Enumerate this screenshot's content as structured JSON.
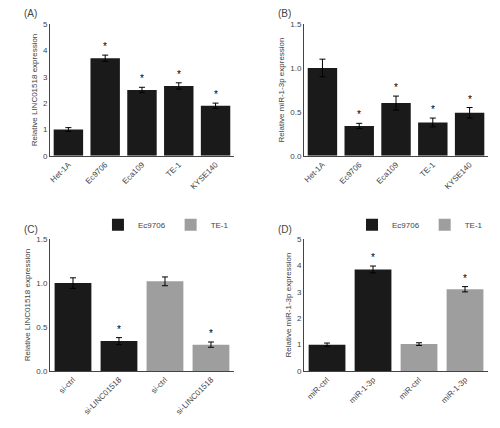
{
  "chart_data": [
    {
      "type": "bar",
      "title": "(A)",
      "categories": [
        "Het-1A",
        "Ec9706",
        "Eca109",
        "TE-1",
        "KYSE140"
      ],
      "values": [
        1.0,
        3.7,
        2.5,
        2.65,
        1.9
      ],
      "errors": [
        0.07,
        0.12,
        0.1,
        0.12,
        0.1
      ],
      "color": "#1a1a1a",
      "ylabel": "Relative LINC01518 expression",
      "ylim": [
        0,
        5
      ],
      "yticks": [
        0,
        1,
        2,
        3,
        4,
        5
      ],
      "grid": false,
      "annotations": [
        {
          "text": "*",
          "index": 1
        },
        {
          "text": "*",
          "index": 2
        },
        {
          "text": "*",
          "index": 3
        },
        {
          "text": "*",
          "index": 4
        }
      ]
    },
    {
      "type": "bar",
      "title": "(B)",
      "categories": [
        "Het-1A",
        "Ec9706",
        "Eca109",
        "TE-1",
        "KYSE140"
      ],
      "values": [
        1.0,
        0.34,
        0.6,
        0.38,
        0.49
      ],
      "errors": [
        0.1,
        0.03,
        0.08,
        0.05,
        0.06
      ],
      "color": "#1a1a1a",
      "ylabel": "Relative miR-1-3p expression",
      "ylim": [
        0,
        1.5
      ],
      "yticks": [
        {
          "value": 0,
          "label": "0.0"
        },
        0.5,
        {
          "value": 1,
          "label": "1.0"
        },
        1.5
      ],
      "grid": false,
      "annotations": [
        {
          "text": "*",
          "index": 1
        },
        {
          "text": "*",
          "index": 2
        },
        {
          "text": "*",
          "index": 3
        },
        {
          "text": "*",
          "index": 4
        }
      ]
    },
    {
      "type": "bar",
      "title": "(C)",
      "categories": [
        "si-ctrl",
        "si-LINC01518",
        "si-ctrl",
        "si-LINC01518"
      ],
      "series": [
        {
          "name": "Ec9706",
          "color": "#1a1a1a",
          "values": [
            1.0,
            0.34,
            null,
            null
          ],
          "errors": [
            0.06,
            0.04,
            null,
            null
          ]
        },
        {
          "name": "TE-1",
          "color": "#9e9e9e",
          "values": [
            null,
            null,
            1.02,
            0.3
          ],
          "errors": [
            null,
            null,
            0.05,
            0.03
          ]
        }
      ],
      "ylabel": "Relative LINC01518 expression",
      "ylim": [
        0,
        1.5
      ],
      "yticks": [
        {
          "value": 0,
          "label": "0.0"
        },
        0.5,
        {
          "value": 1,
          "label": "1.0"
        },
        1.5
      ],
      "grid": false,
      "legend": "upper right",
      "annotations": [
        {
          "text": "*",
          "index": 1
        },
        {
          "text": "*",
          "index": 3
        }
      ]
    },
    {
      "type": "bar",
      "title": "(D)",
      "categories": [
        "miR-ctrl",
        "miR-1-3p",
        "miR-ctrl",
        "miR-1-3p"
      ],
      "series": [
        {
          "name": "Ec9706",
          "color": "#1a1a1a",
          "values": [
            1.0,
            3.85,
            null,
            null
          ],
          "errors": [
            0.06,
            0.13,
            null,
            null
          ]
        },
        {
          "name": "TE-1",
          "color": "#9e9e9e",
          "values": [
            null,
            null,
            1.02,
            3.1
          ],
          "errors": [
            null,
            null,
            0.05,
            0.1
          ]
        }
      ],
      "ylabel": "Relative miR-1-3p expression",
      "ylim": [
        0,
        5
      ],
      "yticks": [
        0,
        1,
        2,
        3,
        4,
        5
      ],
      "grid": false,
      "legend": "upper right",
      "annotations": [
        {
          "text": "*",
          "index": 1
        },
        {
          "text": "*",
          "index": 3
        }
      ]
    }
  ]
}
